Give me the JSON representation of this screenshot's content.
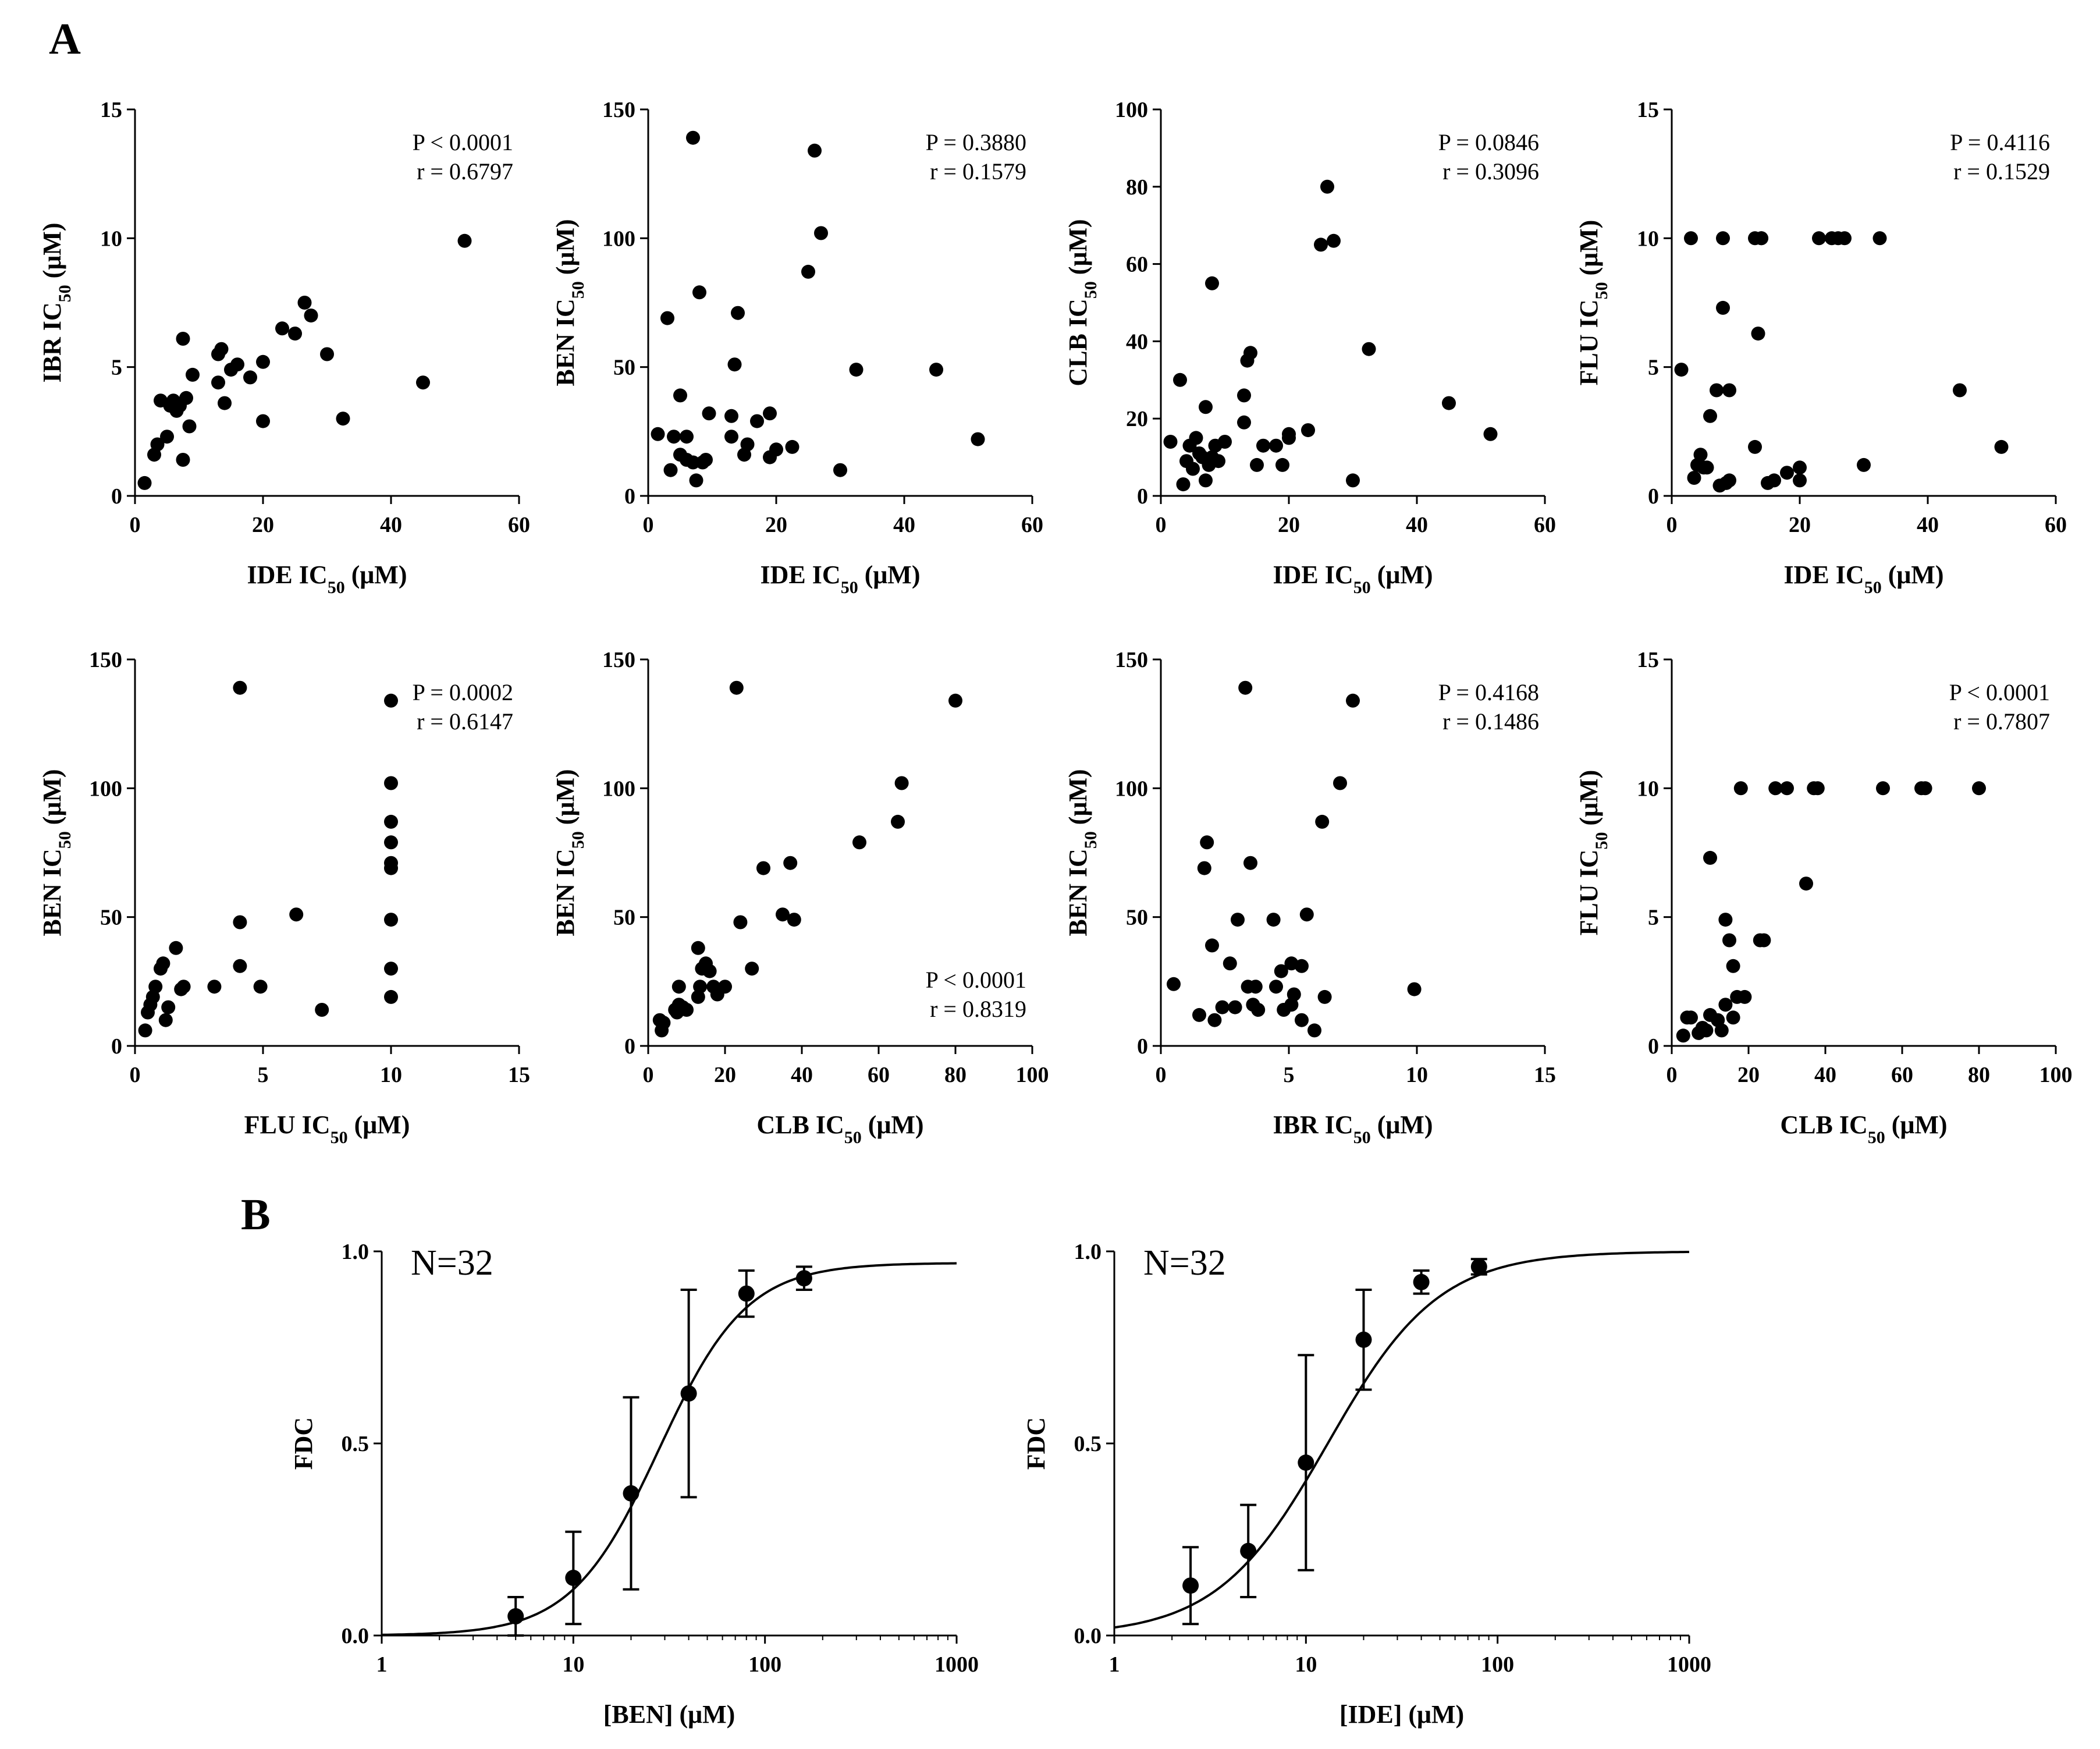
{
  "figure": {
    "panel_labels": [
      "A",
      "B"
    ],
    "unit_text": "(μM)",
    "colors": {
      "ink": "#000000",
      "stat_r": "#555555",
      "background": "#ffffff"
    }
  },
  "chart_data": [
    {
      "type": "scatter",
      "panel": "A",
      "xlabel_drug": "IDE",
      "ylabel_drug": "IBR",
      "xlim": [
        0,
        60
      ],
      "ylim": [
        0,
        15
      ],
      "xticks": [
        "0",
        "20",
        "40",
        "60"
      ],
      "yticks": [
        "0",
        "5",
        "10",
        "15"
      ],
      "stats": [
        "P  < 0.0001",
        "r = 0.6797"
      ],
      "stats_pos": "top-right",
      "points": [
        [
          1.5,
          0.5
        ],
        [
          3,
          1.6
        ],
        [
          3.5,
          2
        ],
        [
          4,
          3.7
        ],
        [
          5,
          2.3
        ],
        [
          5.5,
          3.5
        ],
        [
          6,
          3.7
        ],
        [
          6.5,
          3.3
        ],
        [
          7,
          3.5
        ],
        [
          7.5,
          6.1
        ],
        [
          7.5,
          1.4
        ],
        [
          8,
          3.8
        ],
        [
          8.5,
          2.7
        ],
        [
          9,
          4.7
        ],
        [
          13,
          4.4
        ],
        [
          13,
          5.5
        ],
        [
          13.5,
          5.7
        ],
        [
          14,
          3.6
        ],
        [
          15,
          4.9
        ],
        [
          16,
          5.1
        ],
        [
          18,
          4.6
        ],
        [
          20,
          5.2
        ],
        [
          20,
          2.9
        ],
        [
          23,
          6.5
        ],
        [
          25,
          6.3
        ],
        [
          26.5,
          7.5
        ],
        [
          27.5,
          7
        ],
        [
          30,
          5.5
        ],
        [
          32.5,
          3
        ],
        [
          45,
          4.4
        ],
        [
          51.5,
          9.9
        ]
      ]
    },
    {
      "type": "scatter",
      "panel": "A",
      "xlabel_drug": "IDE",
      "ylabel_drug": "BEN",
      "xlim": [
        0,
        60
      ],
      "ylim": [
        0,
        150
      ],
      "xticks": [
        "0",
        "20",
        "40",
        "60"
      ],
      "yticks": [
        "0",
        "50",
        "100",
        "150"
      ],
      "stats": [
        "P = 0.3880",
        "r = 0.1579"
      ],
      "stats_pos": "top-right",
      "points": [
        [
          1.5,
          24
        ],
        [
          3,
          69
        ],
        [
          3.5,
          10
        ],
        [
          4,
          23
        ],
        [
          5,
          39
        ],
        [
          5,
          16
        ],
        [
          6,
          23
        ],
        [
          6,
          14
        ],
        [
          7,
          139
        ],
        [
          7,
          13
        ],
        [
          7.5,
          6
        ],
        [
          8,
          79
        ],
        [
          8.5,
          13
        ],
        [
          9,
          14
        ],
        [
          9.5,
          32
        ],
        [
          13,
          31
        ],
        [
          13,
          23
        ],
        [
          13.5,
          51
        ],
        [
          14,
          71
        ],
        [
          15,
          16
        ],
        [
          15.5,
          20
        ],
        [
          17,
          29
        ],
        [
          19,
          32
        ],
        [
          19,
          15
        ],
        [
          20,
          18
        ],
        [
          22.5,
          19
        ],
        [
          25,
          87
        ],
        [
          26,
          134
        ],
        [
          27,
          102
        ],
        [
          30,
          10
        ],
        [
          32.5,
          49
        ],
        [
          45,
          49
        ],
        [
          51.5,
          22
        ]
      ]
    },
    {
      "type": "scatter",
      "panel": "A",
      "xlabel_drug": "IDE",
      "ylabel_drug": "CLB",
      "xlim": [
        0,
        60
      ],
      "ylim": [
        0,
        100
      ],
      "xticks": [
        "0",
        "20",
        "40",
        "60"
      ],
      "yticks": [
        "0",
        "20",
        "40",
        "60",
        "80",
        "100"
      ],
      "stats": [
        "P = 0.0846",
        "r = 0.3096"
      ],
      "stats_pos": "top-right",
      "points": [
        [
          1.5,
          14
        ],
        [
          3,
          30
        ],
        [
          3.5,
          3
        ],
        [
          4,
          9
        ],
        [
          4.5,
          13
        ],
        [
          5,
          7
        ],
        [
          5.5,
          15
        ],
        [
          6,
          11
        ],
        [
          6.5,
          10
        ],
        [
          7,
          23
        ],
        [
          7,
          4
        ],
        [
          7.5,
          8
        ],
        [
          8,
          55
        ],
        [
          8,
          10
        ],
        [
          8.5,
          13
        ],
        [
          9,
          9
        ],
        [
          10,
          14
        ],
        [
          13,
          19
        ],
        [
          13,
          26
        ],
        [
          13.5,
          35
        ],
        [
          14,
          37
        ],
        [
          15,
          8
        ],
        [
          16,
          13
        ],
        [
          18,
          13
        ],
        [
          19,
          8
        ],
        [
          20,
          15
        ],
        [
          20,
          16
        ],
        [
          23,
          17
        ],
        [
          25,
          65
        ],
        [
          26,
          80
        ],
        [
          27,
          66
        ],
        [
          30,
          4
        ],
        [
          32.5,
          38
        ],
        [
          45,
          24
        ],
        [
          51.5,
          16
        ]
      ]
    },
    {
      "type": "scatter",
      "panel": "A",
      "xlabel_drug": "IDE",
      "ylabel_drug": "FLU",
      "xlim": [
        0,
        60
      ],
      "ylim": [
        0,
        15
      ],
      "xticks": [
        "0",
        "20",
        "40",
        "60"
      ],
      "yticks": [
        "0",
        "5",
        "10",
        "15"
      ],
      "stats": [
        "P = 0.4116",
        "r = 0.1529"
      ],
      "stats_pos": "top-right",
      "points": [
        [
          1.5,
          4.9
        ],
        [
          3,
          10
        ],
        [
          3.5,
          0.7
        ],
        [
          4,
          1.2
        ],
        [
          4.5,
          1.6
        ],
        [
          5,
          1.1
        ],
        [
          5.5,
          1.1
        ],
        [
          6,
          3.1
        ],
        [
          7,
          4.1
        ],
        [
          7.5,
          0.4
        ],
        [
          8,
          10
        ],
        [
          8,
          7.3
        ],
        [
          8.5,
          0.5
        ],
        [
          9,
          4.1
        ],
        [
          9,
          0.6
        ],
        [
          13,
          10
        ],
        [
          13,
          1.9
        ],
        [
          13.5,
          6.3
        ],
        [
          14,
          10
        ],
        [
          14,
          10
        ],
        [
          15,
          0.5
        ],
        [
          16,
          0.6
        ],
        [
          18,
          0.9
        ],
        [
          20,
          1.1
        ],
        [
          20,
          0.6
        ],
        [
          23,
          10
        ],
        [
          25,
          10
        ],
        [
          26,
          10
        ],
        [
          27,
          10
        ],
        [
          30,
          1.2
        ],
        [
          32.5,
          10
        ],
        [
          45,
          4.1
        ],
        [
          51.5,
          1.9
        ]
      ]
    },
    {
      "type": "scatter",
      "panel": "A",
      "xlabel_drug": "FLU",
      "ylabel_drug": "BEN",
      "xlim": [
        0,
        15
      ],
      "ylim": [
        0,
        150
      ],
      "xticks": [
        "0",
        "5",
        "10",
        "15"
      ],
      "yticks": [
        "0",
        "50",
        "100",
        "150"
      ],
      "stats": [
        "P = 0.0002",
        "r = 0.6147"
      ],
      "stats_pos": "top-right",
      "points": [
        [
          0.4,
          6
        ],
        [
          0.5,
          13
        ],
        [
          0.6,
          16
        ],
        [
          0.7,
          19
        ],
        [
          0.8,
          23
        ],
        [
          1,
          30
        ],
        [
          1.1,
          32
        ],
        [
          1.2,
          10
        ],
        [
          1.3,
          15
        ],
        [
          1.6,
          38
        ],
        [
          1.8,
          22
        ],
        [
          1.9,
          23
        ],
        [
          3.1,
          23
        ],
        [
          4.1,
          139
        ],
        [
          4.1,
          48
        ],
        [
          4.1,
          31
        ],
        [
          4.9,
          23
        ],
        [
          6.3,
          51
        ],
        [
          7.3,
          14
        ],
        [
          10,
          134
        ],
        [
          10,
          102
        ],
        [
          10,
          87
        ],
        [
          10,
          79
        ],
        [
          10,
          71
        ],
        [
          10,
          69
        ],
        [
          10,
          49
        ],
        [
          10,
          30
        ],
        [
          10,
          19
        ]
      ]
    },
    {
      "type": "scatter",
      "panel": "A",
      "xlabel_drug": "CLB",
      "ylabel_drug": "BEN",
      "xlim": [
        0,
        100
      ],
      "ylim": [
        0,
        150
      ],
      "xticks": [
        "0",
        "20",
        "40",
        "60",
        "80",
        "100"
      ],
      "yticks": [
        "0",
        "50",
        "100",
        "150"
      ],
      "stats": [
        "P < 0.0001",
        "r = 0.8319"
      ],
      "stats_pos": "bottom-right",
      "points": [
        [
          3,
          10
        ],
        [
          3.5,
          6
        ],
        [
          4,
          9
        ],
        [
          7,
          14
        ],
        [
          7.5,
          13
        ],
        [
          8,
          23
        ],
        [
          8,
          16
        ],
        [
          9,
          15
        ],
        [
          10,
          14
        ],
        [
          13,
          19
        ],
        [
          13,
          38
        ],
        [
          13.5,
          23
        ],
        [
          14,
          30
        ],
        [
          15,
          32
        ],
        [
          16,
          29
        ],
        [
          17,
          23
        ],
        [
          18,
          20
        ],
        [
          20,
          23
        ],
        [
          23,
          139
        ],
        [
          24,
          48
        ],
        [
          27,
          30
        ],
        [
          30,
          69
        ],
        [
          35,
          51
        ],
        [
          37,
          71
        ],
        [
          38,
          49
        ],
        [
          55,
          79
        ],
        [
          65,
          87
        ],
        [
          66,
          102
        ],
        [
          80,
          134
        ]
      ]
    },
    {
      "type": "scatter",
      "panel": "A",
      "xlabel_drug": "IBR",
      "ylabel_drug": "BEN",
      "xlim": [
        0,
        15
      ],
      "ylim": [
        0,
        150
      ],
      "xticks": [
        "0",
        "5",
        "10",
        "15"
      ],
      "yticks": [
        "0",
        "50",
        "100",
        "150"
      ],
      "stats": [
        "P = 0.4168",
        "r = 0.1486"
      ],
      "stats_pos": "top-right",
      "points": [
        [
          0.5,
          24
        ],
        [
          1.5,
          12
        ],
        [
          1.7,
          69
        ],
        [
          1.8,
          79
        ],
        [
          2,
          39
        ],
        [
          2.1,
          10
        ],
        [
          2.4,
          15
        ],
        [
          2.7,
          32
        ],
        [
          2.9,
          15
        ],
        [
          3,
          49
        ],
        [
          3.3,
          139
        ],
        [
          3.4,
          23
        ],
        [
          3.5,
          71
        ],
        [
          3.6,
          16
        ],
        [
          3.7,
          23
        ],
        [
          3.8,
          14
        ],
        [
          4.4,
          49
        ],
        [
          4.5,
          23
        ],
        [
          4.7,
          29
        ],
        [
          4.8,
          14
        ],
        [
          5.1,
          32
        ],
        [
          5.1,
          16
        ],
        [
          5.2,
          20
        ],
        [
          5.5,
          31
        ],
        [
          5.5,
          10
        ],
        [
          5.7,
          51
        ],
        [
          6,
          6
        ],
        [
          6.3,
          87
        ],
        [
          6.4,
          19
        ],
        [
          7,
          102
        ],
        [
          7.5,
          134
        ],
        [
          9.9,
          22
        ]
      ]
    },
    {
      "type": "scatter",
      "panel": "A",
      "xlabel_drug": "CLB",
      "ylabel_drug": "FLU",
      "xlim": [
        0,
        100
      ],
      "ylim": [
        0,
        15
      ],
      "xticks": [
        "0",
        "20",
        "40",
        "60",
        "80",
        "100"
      ],
      "yticks": [
        "0",
        "5",
        "10",
        "15"
      ],
      "stats": [
        "P  < 0.0001",
        "r = 0.7807"
      ],
      "stats_pos": "top-right",
      "points": [
        [
          3,
          0.4
        ],
        [
          4,
          1.1
        ],
        [
          5,
          1.1
        ],
        [
          7,
          0.5
        ],
        [
          8,
          0.7
        ],
        [
          9,
          0.6
        ],
        [
          10,
          7.3
        ],
        [
          10,
          1.2
        ],
        [
          12,
          1
        ],
        [
          13,
          0.6
        ],
        [
          14,
          1.6
        ],
        [
          14,
          4.9
        ],
        [
          15,
          4.1
        ],
        [
          16,
          1.1
        ],
        [
          16,
          3.1
        ],
        [
          17,
          1.9
        ],
        [
          18,
          10
        ],
        [
          19,
          1.9
        ],
        [
          23,
          4.1
        ],
        [
          24,
          4.1
        ],
        [
          27,
          10
        ],
        [
          30,
          10
        ],
        [
          35,
          6.3
        ],
        [
          37,
          10
        ],
        [
          38,
          10
        ],
        [
          55,
          10
        ],
        [
          65,
          10
        ],
        [
          66,
          10
        ],
        [
          80,
          10
        ]
      ]
    },
    {
      "type": "line",
      "panel": "B",
      "drug": "BEN",
      "xlabel": "[BEN] (μM)",
      "ylabel": "FDC",
      "xscale": "log",
      "xlim": [
        1,
        1000
      ],
      "ylim": [
        0,
        1
      ],
      "xticks": [
        "1",
        "10",
        "100",
        "1000"
      ],
      "yticks": [
        "0.0",
        "0.5",
        "1.0"
      ],
      "annotation": "N=32",
      "points": [
        {
          "x": 5,
          "y": 0.05,
          "err": 0.05
        },
        {
          "x": 10,
          "y": 0.15,
          "err": 0.12
        },
        {
          "x": 20,
          "y": 0.37,
          "err": 0.25
        },
        {
          "x": 40,
          "y": 0.63,
          "err": 0.27
        },
        {
          "x": 80,
          "y": 0.89,
          "err": 0.06
        },
        {
          "x": 160,
          "y": 0.93,
          "err": 0.03
        }
      ],
      "fit": {
        "model": "hill",
        "ec50": 28,
        "hill": 1.9,
        "top": 0.97,
        "bottom": 0
      }
    },
    {
      "type": "line",
      "panel": "B",
      "drug": "IDE",
      "xlabel": "[IDE] (μM)",
      "ylabel": "FDC",
      "xscale": "log",
      "xlim": [
        1,
        1000
      ],
      "ylim": [
        0,
        1
      ],
      "xticks": [
        "1",
        "10",
        "100",
        "1000"
      ],
      "yticks": [
        "0.0",
        "0.5",
        "1.0"
      ],
      "annotation": "N=32",
      "points": [
        {
          "x": 2.5,
          "y": 0.13,
          "err": 0.1
        },
        {
          "x": 5,
          "y": 0.22,
          "err": 0.12
        },
        {
          "x": 10,
          "y": 0.45,
          "err": 0.28
        },
        {
          "x": 20,
          "y": 0.77,
          "err": 0.13
        },
        {
          "x": 40,
          "y": 0.92,
          "err": 0.03
        },
        {
          "x": 80,
          "y": 0.96,
          "err": 0.02
        }
      ],
      "fit": {
        "model": "hill",
        "ec50": 13,
        "hill": 1.5,
        "top": 1.0,
        "bottom": 0
      }
    }
  ]
}
